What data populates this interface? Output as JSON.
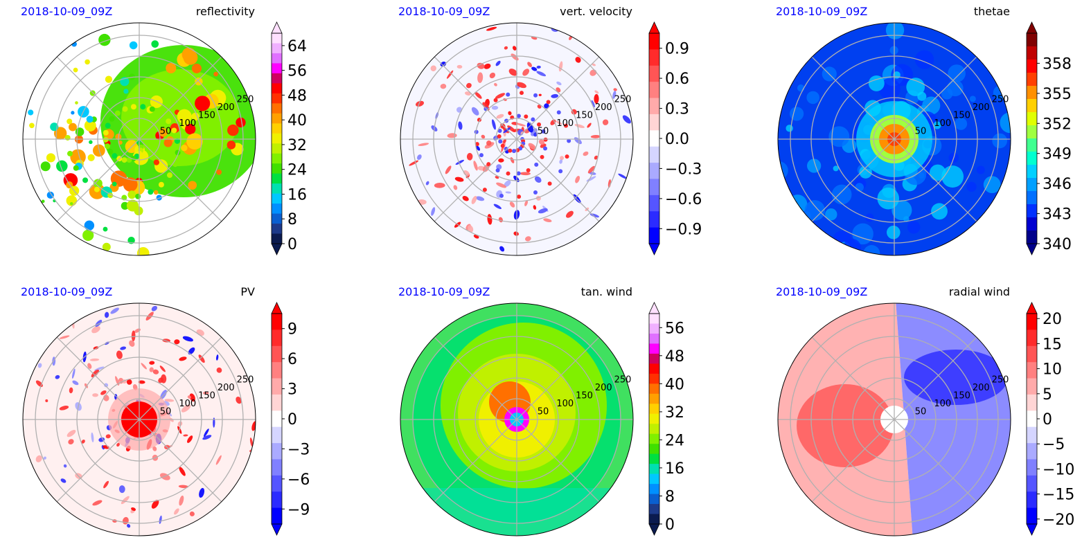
{
  "colors": {
    "date": "#0000ff",
    "grid": "#b0b0b0",
    "reflectivity_scale": [
      "#0b1b4f",
      "#1d3a8a",
      "#0a5fd0",
      "#0090ff",
      "#00c8ff",
      "#00e0b0",
      "#00e040",
      "#40e000",
      "#80f000",
      "#c0f000",
      "#f0f000",
      "#ffd000",
      "#ffa000",
      "#ff7000",
      "#ff3000",
      "#ff0000",
      "#d00060",
      "#ff00ff",
      "#e070ff",
      "#f0b0ff",
      "#ffe0ff"
    ],
    "diverging_scale": [
      "#0000ff",
      "#2b2bff",
      "#5555ff",
      "#8080ff",
      "#aaaaff",
      "#d5d5ff",
      "#ffffff",
      "#ffd5d5",
      "#ffaaaa",
      "#ff8080",
      "#ff5555",
      "#ff2b2b",
      "#ff0000"
    ],
    "thetae_scale": [
      "#00008b",
      "#0000d0",
      "#0030ff",
      "#0070ff",
      "#00a0ff",
      "#00d0ff",
      "#00ffd0",
      "#40ff90",
      "#a0ff40",
      "#e0ff00",
      "#ffd000",
      "#ff9000",
      "#ff4000",
      "#ff0000",
      "#c00000",
      "#800000"
    ]
  },
  "panels": [
    {
      "id": "reflectivity",
      "date": "2018-10-09_09Z",
      "field": "reflectivity",
      "ticks": [
        "0",
        "8",
        "16",
        "24",
        "32",
        "40",
        "48",
        "56",
        "64"
      ],
      "extend": "both",
      "scale": "reflectivity_scale"
    },
    {
      "id": "vert-velocity",
      "date": "2018-10-09_09Z",
      "field": "vert. velocity",
      "ticks": [
        "−0.9",
        "−0.6",
        "−0.3",
        "0.0",
        "0.3",
        "0.6",
        "0.9"
      ],
      "extend": "both",
      "scale": "diverging_scale"
    },
    {
      "id": "thetae",
      "date": "2018-10-09_09Z",
      "field": "thetae",
      "ticks": [
        "340",
        "343",
        "346",
        "349",
        "352",
        "355",
        "358"
      ],
      "extend": "both",
      "scale": "thetae_scale"
    },
    {
      "id": "pv",
      "date": "2018-10-09_09Z",
      "field": "PV",
      "ticks": [
        "−9",
        "−6",
        "−3",
        "0",
        "3",
        "6",
        "9"
      ],
      "extend": "both",
      "scale": "diverging_scale"
    },
    {
      "id": "tan-wind",
      "date": "2018-10-09_09Z",
      "field": "tan. wind",
      "ticks": [
        "0",
        "8",
        "16",
        "24",
        "32",
        "40",
        "48",
        "56"
      ],
      "extend": "both",
      "scale": "reflectivity_scale"
    },
    {
      "id": "radial-wind",
      "date": "2018-10-09_09Z",
      "field": "radial wind",
      "ticks": [
        "−20",
        "−15",
        "−10",
        "−5",
        "0",
        "5",
        "10",
        "15",
        "20"
      ],
      "extend": "both",
      "scale": "diverging_scale"
    }
  ],
  "chart_data": {
    "type": "heatmap",
    "projection": "polar",
    "radial_ticks": [
      "50",
      "100",
      "150",
      "200",
      "250"
    ],
    "grid": true,
    "charts": [
      {
        "title": "reflectivity",
        "subtitle": "2018-10-09_09Z",
        "colorbar_range": [
          0,
          68
        ],
        "colorbar_ticks": [
          0,
          8,
          16,
          24,
          32,
          40,
          48,
          56,
          64
        ]
      },
      {
        "title": "vert. velocity",
        "subtitle": "2018-10-09_09Z",
        "colorbar_range": [
          -1.05,
          1.05
        ],
        "colorbar_ticks": [
          -0.9,
          -0.6,
          -0.3,
          0.0,
          0.3,
          0.6,
          0.9
        ]
      },
      {
        "title": "thetae",
        "subtitle": "2018-10-09_09Z",
        "colorbar_range": [
          340,
          361
        ],
        "colorbar_ticks": [
          340,
          343,
          346,
          349,
          352,
          355,
          358
        ]
      },
      {
        "title": "PV",
        "subtitle": "2018-10-09_09Z",
        "colorbar_range": [
          -10.5,
          10.5
        ],
        "colorbar_ticks": [
          -9,
          -6,
          -3,
          0,
          3,
          6,
          9
        ]
      },
      {
        "title": "tan. wind",
        "subtitle": "2018-10-09_09Z",
        "colorbar_range": [
          0,
          60
        ],
        "colorbar_ticks": [
          0,
          8,
          16,
          24,
          32,
          40,
          48,
          56
        ]
      },
      {
        "title": "radial wind",
        "subtitle": "2018-10-09_09Z",
        "colorbar_range": [
          -21,
          21
        ],
        "colorbar_ticks": [
          -20,
          -15,
          -10,
          -5,
          0,
          5,
          10,
          15,
          20
        ]
      }
    ]
  }
}
